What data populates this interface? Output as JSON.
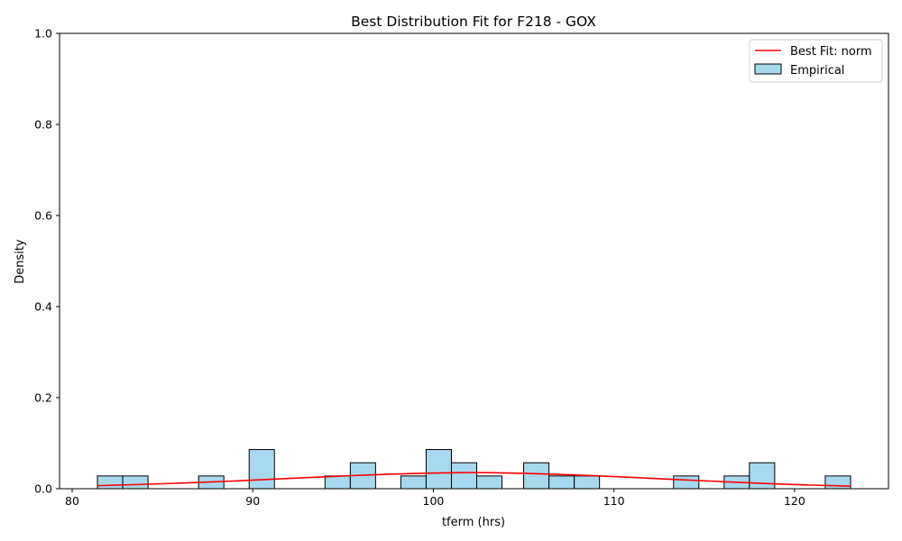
{
  "chart_data": {
    "type": "bar",
    "title": "Best Distribution Fit for F218 - GOX",
    "xlabel": "tferm (hrs)",
    "ylabel": "Density",
    "xlim": [
      79.3,
      125.2
    ],
    "ylim": [
      0,
      1.0
    ],
    "xticks": [
      80,
      90,
      100,
      110,
      120
    ],
    "xtick_labels": [
      "80",
      "90",
      "100",
      "110",
      "120"
    ],
    "yticks": [
      0,
      0.2,
      0.4,
      0.6,
      0.8,
      1.0
    ],
    "ytick_labels": [
      "0.0",
      "0.2",
      "0.4",
      "0.6",
      "0.8",
      "1.0"
    ],
    "grid": false,
    "legend_position": "top-right",
    "colors": {
      "bar_fill": "#a6d8ee",
      "bar_edge": "#000000",
      "fit_line": "#ff0000"
    },
    "legend": [
      {
        "label": "Best Fit: norm",
        "kind": "line"
      },
      {
        "label": "Empirical",
        "kind": "patch"
      }
    ],
    "histogram": {
      "name": "Empirical",
      "bins": [
        {
          "x0": 81.4,
          "x1": 82.8,
          "density": 0.028
        },
        {
          "x0": 82.8,
          "x1": 84.2,
          "density": 0.028
        },
        {
          "x0": 87.0,
          "x1": 88.4,
          "density": 0.028
        },
        {
          "x0": 89.8,
          "x1": 91.2,
          "density": 0.086
        },
        {
          "x0": 94.0,
          "x1": 95.4,
          "density": 0.028
        },
        {
          "x0": 95.4,
          "x1": 96.8,
          "density": 0.057
        },
        {
          "x0": 98.2,
          "x1": 99.6,
          "density": 0.028
        },
        {
          "x0": 99.6,
          "x1": 101.0,
          "density": 0.086
        },
        {
          "x0": 101.0,
          "x1": 102.4,
          "density": 0.057
        },
        {
          "x0": 102.4,
          "x1": 103.8,
          "density": 0.028
        },
        {
          "x0": 105.0,
          "x1": 106.4,
          "density": 0.057
        },
        {
          "x0": 106.4,
          "x1": 107.8,
          "density": 0.028
        },
        {
          "x0": 107.8,
          "x1": 109.2,
          "density": 0.028
        },
        {
          "x0": 113.3,
          "x1": 114.7,
          "density": 0.028
        },
        {
          "x0": 116.1,
          "x1": 117.5,
          "density": 0.028
        },
        {
          "x0": 117.5,
          "x1": 118.9,
          "density": 0.057
        },
        {
          "x0": 121.7,
          "x1": 123.1,
          "density": 0.028
        }
      ]
    },
    "fit": {
      "name": "Best Fit: norm",
      "x": [
        81.4,
        83,
        85,
        87,
        89,
        91,
        93,
        95,
        97,
        99,
        101,
        102,
        103,
        105,
        107,
        109,
        111,
        113,
        115,
        117,
        119,
        121,
        123.1
      ],
      "y": [
        0.0067,
        0.0084,
        0.0109,
        0.0138,
        0.017,
        0.0206,
        0.0243,
        0.0279,
        0.0311,
        0.0335,
        0.0351,
        0.0354,
        0.0352,
        0.0338,
        0.0314,
        0.0284,
        0.0248,
        0.021,
        0.0173,
        0.0137,
        0.0106,
        0.0079,
        0.0056
      ]
    }
  }
}
